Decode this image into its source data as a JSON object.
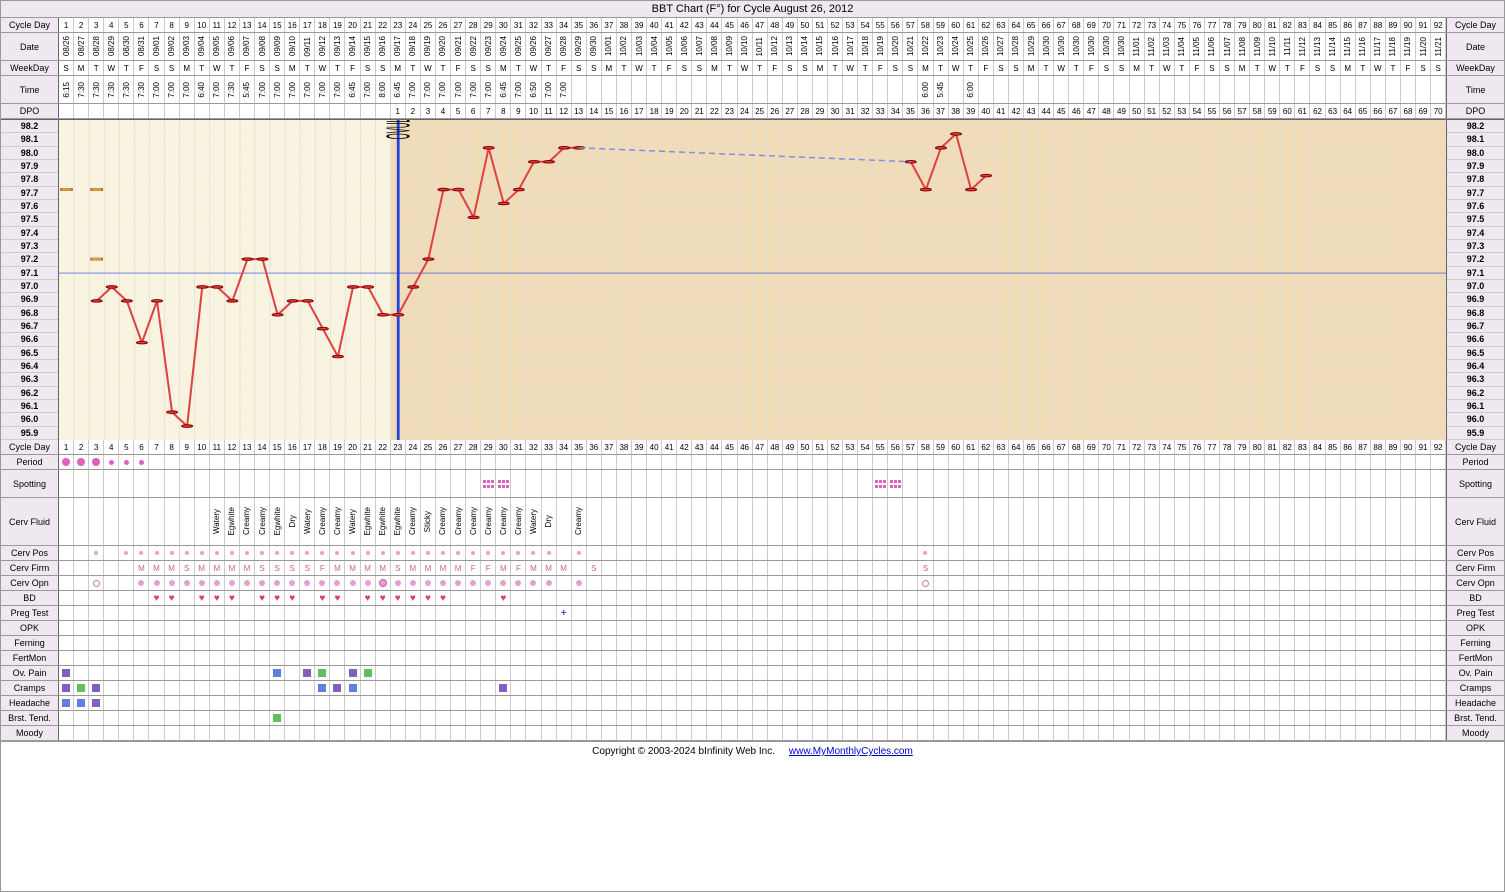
{
  "title": "BBT Chart (F°) for Cycle August 26, 2012",
  "footer": {
    "copyright": "Copyright © 2003-2024 bInfinity Web Inc.",
    "url": "www.MyMonthlyCycles.com"
  },
  "labels": {
    "cycleDay": "Cycle Day",
    "date": "Date",
    "weekDay": "WeekDay",
    "time": "Time",
    "dpo": "DPO",
    "period": "Period",
    "spotting": "Spotting",
    "cervFluid": "Cerv Fluid",
    "cervPos": "Cerv Pos",
    "cervFirm": "Cerv Firm",
    "cervOpn": "Cerv Opn",
    "bd": "BD",
    "pregTest": "Preg Test",
    "opk": "OPK",
    "ferning": "Ferning",
    "fertMon": "FertMon",
    "ovPain": "Ov. Pain",
    "cramps": "Cramps",
    "headache": "Headache",
    "brstTend": "Brst. Tend.",
    "moody": "Moody"
  },
  "numDays": 92,
  "dates": [
    "08/26",
    "08/27",
    "08/28",
    "08/29",
    "08/30",
    "08/31",
    "09/01",
    "09/02",
    "09/03",
    "09/04",
    "09/05",
    "09/06",
    "09/07",
    "09/08",
    "09/09",
    "09/10",
    "09/11",
    "09/12",
    "09/13",
    "09/14",
    "09/15",
    "09/16",
    "09/17",
    "09/18",
    "09/19",
    "09/20",
    "09/21",
    "09/22",
    "09/23",
    "09/24",
    "09/25",
    "09/26",
    "09/27",
    "09/28",
    "09/29",
    "09/30",
    "10/01",
    "10/02",
    "10/03",
    "10/04",
    "10/05",
    "10/06",
    "10/07",
    "10/08",
    "10/09",
    "10/10",
    "10/11",
    "10/12",
    "10/13",
    "10/14",
    "10/15",
    "10/16",
    "10/17",
    "10/18",
    "10/19",
    "10/20",
    "10/21",
    "10/22",
    "10/23",
    "10/24",
    "10/25",
    "10/26",
    "10/27",
    "10/28",
    "10/29",
    "10/30",
    "10/30",
    "10/30",
    "10/30",
    "10/30",
    "10/30",
    "11/01",
    "11/02",
    "11/03",
    "11/04",
    "11/05",
    "11/06",
    "11/07",
    "11/08",
    "11/09",
    "11/10",
    "11/11",
    "11/12",
    "11/13",
    "11/14",
    "11/15",
    "11/16",
    "11/17",
    "11/18",
    "11/19",
    "11/20",
    "11/21"
  ],
  "weekdays": [
    "S",
    "M",
    "T",
    "W",
    "T",
    "F",
    "S",
    "S",
    "M",
    "T",
    "W",
    "T",
    "F",
    "S",
    "S",
    "M",
    "T",
    "W",
    "T",
    "F",
    "S",
    "S",
    "M",
    "T",
    "W",
    "T",
    "F",
    "S",
    "S",
    "M",
    "T",
    "W",
    "T",
    "F",
    "S",
    "S",
    "M",
    "T",
    "W",
    "T",
    "F",
    "S",
    "S",
    "M",
    "T",
    "W",
    "T",
    "F",
    "S",
    "S",
    "M",
    "T",
    "W",
    "T",
    "F",
    "S",
    "S",
    "M",
    "T",
    "W",
    "T",
    "F",
    "S",
    "S",
    "M",
    "T",
    "W",
    "T",
    "F",
    "S",
    "S",
    "M",
    "T",
    "W",
    "T",
    "F",
    "S",
    "S",
    "M",
    "T",
    "W",
    "T",
    "F",
    "S",
    "S",
    "M",
    "T",
    "W",
    "T",
    "F",
    "S",
    "S"
  ],
  "times": [
    "6:15",
    "7:30",
    "7:30",
    "7:30",
    "7:30",
    "7:30",
    "7:00",
    "7:00",
    "7:00",
    "6:40",
    "7:00",
    "7:30",
    "5:45",
    "7:00",
    "7:00",
    "7:00",
    "7:00",
    "7:00",
    "7:00",
    "6:45",
    "7:00",
    "8:00",
    "6:45",
    "7:00",
    "7:00",
    "7:00",
    "7:00",
    "7:00",
    "7:00",
    "6:45",
    "7:00",
    "6:50",
    "7:00",
    "7:00",
    "",
    "",
    "",
    "",
    "",
    "",
    "",
    "",
    "",
    "",
    "",
    "",
    "",
    "",
    "",
    "",
    "",
    "",
    "",
    "",
    "",
    "",
    "",
    "6:00",
    "5:45",
    "",
    "6:00",
    "",
    "",
    "",
    "",
    "",
    "",
    "",
    "",
    "",
    "",
    "",
    "",
    "",
    "",
    "",
    "",
    "",
    "",
    "",
    "",
    "",
    "",
    "",
    "",
    "",
    "",
    "",
    "",
    "",
    "",
    ""
  ],
  "dpoStart": 23,
  "yAxis": {
    "min": 95.9,
    "max": 98.2,
    "step": 0.1
  },
  "coverline": 97.1,
  "ovulationDay": 23,
  "preOvColor": "#f8f4e0",
  "postOvColor": "#f0dcb8",
  "lineColor": "#e04040",
  "coverlineColor": "#2040e0",
  "dashColor": "#8090e0",
  "temps": [
    {
      "d": 3,
      "t": 96.9
    },
    {
      "d": 4,
      "t": 97.0
    },
    {
      "d": 5,
      "t": 96.9
    },
    {
      "d": 6,
      "t": 96.6
    },
    {
      "d": 7,
      "t": 96.9
    },
    {
      "d": 8,
      "t": 96.1
    },
    {
      "d": 9,
      "t": 96.0
    },
    {
      "d": 10,
      "t": 97.0
    },
    {
      "d": 11,
      "t": 97.0
    },
    {
      "d": 12,
      "t": 96.9
    },
    {
      "d": 13,
      "t": 97.2
    },
    {
      "d": 14,
      "t": 97.2
    },
    {
      "d": 15,
      "t": 96.8
    },
    {
      "d": 16,
      "t": 96.9
    },
    {
      "d": 17,
      "t": 96.9
    },
    {
      "d": 18,
      "t": 96.7
    },
    {
      "d": 19,
      "t": 96.5
    },
    {
      "d": 20,
      "t": 97.0
    },
    {
      "d": 21,
      "t": 97.0
    },
    {
      "d": 22,
      "t": 96.8
    },
    {
      "d": 23,
      "t": 96.8
    },
    {
      "d": 24,
      "t": 97.0
    },
    {
      "d": 25,
      "t": 97.2
    },
    {
      "d": 26,
      "t": 97.7
    },
    {
      "d": 27,
      "t": 97.7
    },
    {
      "d": 28,
      "t": 97.5
    },
    {
      "d": 29,
      "t": 98.0
    },
    {
      "d": 30,
      "t": 97.6
    },
    {
      "d": 31,
      "t": 97.7
    },
    {
      "d": 32,
      "t": 97.9
    },
    {
      "d": 33,
      "t": 97.9
    },
    {
      "d": 34,
      "t": 98.0
    },
    {
      "d": 35,
      "t": 98.0
    }
  ],
  "temps2": [
    {
      "d": 57,
      "t": 97.9
    },
    {
      "d": 58,
      "t": 97.7
    },
    {
      "d": 59,
      "t": 98.0
    },
    {
      "d": 60,
      "t": 98.1
    },
    {
      "d": 61,
      "t": 97.7
    },
    {
      "d": 62,
      "t": 97.8
    }
  ],
  "dashedSegment": {
    "from": {
      "d": 35,
      "t": 98.0
    },
    "to": {
      "d": 57,
      "t": 97.9
    }
  },
  "squares": [
    {
      "d": 1,
      "t": 97.7
    },
    {
      "d": 3,
      "t": 97.7
    },
    {
      "d": 3,
      "t": 97.2
    }
  ],
  "period": {
    "1": "lg",
    "2": "lg",
    "3": "lg",
    "4": "sm",
    "5": "sm",
    "6": "sm"
  },
  "spotting": [
    29,
    30,
    55,
    56
  ],
  "cervFluid": {
    "11": "Watery",
    "12": "Egwhite",
    "13": "Creamy",
    "14": "Creamy",
    "15": "Egwhite",
    "16": "Dry",
    "17": "Watery",
    "18": "Creamy",
    "19": "Creamy",
    "20": "Watery",
    "21": "Egwhite",
    "22": "Egwhite",
    "23": "Egwhite",
    "24": "Creamy",
    "25": "Sticky",
    "26": "Creamy",
    "27": "Creamy",
    "28": "Creamy",
    "29": "Creamy",
    "30": "Creamy",
    "31": "Creamy",
    "32": "Watery",
    "33": "Dry",
    "35": "Creamy"
  },
  "cervPos": [
    3,
    5,
    6,
    7,
    8,
    9,
    10,
    11,
    12,
    13,
    14,
    15,
    16,
    17,
    18,
    19,
    20,
    21,
    22,
    23,
    24,
    25,
    26,
    27,
    28,
    29,
    30,
    31,
    32,
    33,
    35,
    58
  ],
  "cervFirm": {
    "6": "M",
    "7": "M",
    "8": "M",
    "9": "S",
    "10": "M",
    "11": "M",
    "12": "M",
    "13": "M",
    "14": "S",
    "15": "S",
    "16": "S",
    "17": "S",
    "18": "F",
    "19": "M",
    "20": "M",
    "21": "M",
    "22": "M",
    "23": "S",
    "24": "M",
    "25": "M",
    "26": "M",
    "27": "M",
    "28": "F",
    "29": "F",
    "30": "M",
    "31": "F",
    "32": "M",
    "33": "M",
    "34": "M",
    "36": "S",
    "58": "S"
  },
  "cervOpn": {
    "3": "open",
    "6": "dot",
    "7": "dot",
    "8": "dot",
    "9": "dot",
    "10": "dot",
    "11": "dot",
    "12": "dot",
    "13": "dot",
    "14": "dot",
    "15": "dot",
    "16": "dot",
    "17": "dot",
    "18": "dot",
    "19": "dot",
    "20": "dot",
    "21": "dot",
    "22": "lg",
    "23": "dot",
    "24": "dot",
    "25": "dot",
    "26": "dot",
    "27": "dot",
    "28": "dot",
    "29": "dot",
    "30": "dot",
    "31": "dot",
    "32": "dot",
    "33": "dot",
    "35": "dot",
    "58": "open"
  },
  "bd": [
    7,
    8,
    10,
    11,
    12,
    14,
    15,
    16,
    18,
    19,
    21,
    22,
    23,
    24,
    25,
    26,
    30
  ],
  "pregTest": {
    "34": "+"
  },
  "ovPain": {
    "1": "purple",
    "15": "blue",
    "17": "purple",
    "18": "green",
    "20": "purple",
    "21": "green"
  },
  "cramps": {
    "1": "purple",
    "2": "green",
    "3": "purple",
    "18": "blue",
    "19": "purple",
    "20": "blue",
    "30": "purple"
  },
  "headache": {
    "1": "blue",
    "2": "blue",
    "3": "purple"
  },
  "brstTend": {
    "15": "green"
  }
}
